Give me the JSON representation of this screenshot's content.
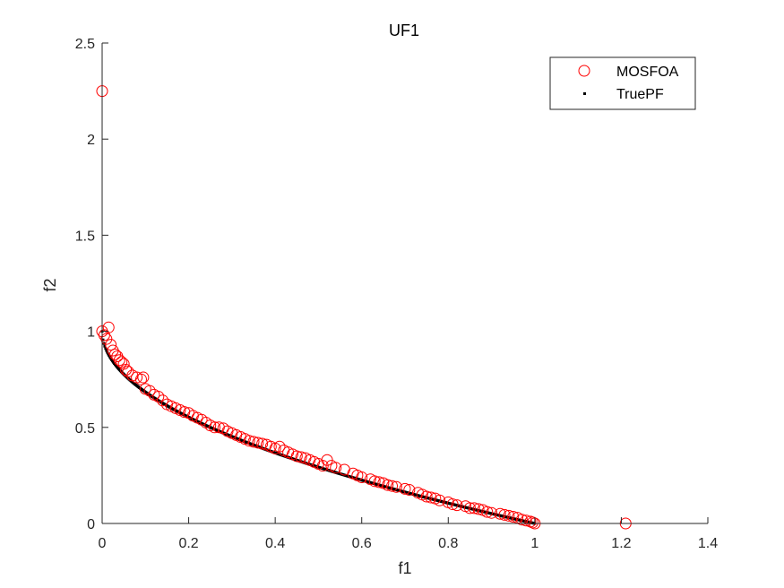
{
  "chart_data": {
    "type": "scatter",
    "title": "UF1",
    "xlabel": "f1",
    "ylabel": "f2",
    "xlim": [
      0,
      1.4
    ],
    "ylim": [
      0,
      2.5
    ],
    "xticks": [
      "0",
      "0.2",
      "0.4",
      "0.6",
      "0.8",
      "1",
      "1.2",
      "1.4"
    ],
    "yticks": [
      "0",
      "0.5",
      "1",
      "1.5",
      "2",
      "2.5"
    ],
    "grid": false,
    "legend_position": "top-right",
    "series": [
      {
        "name": "MOSFOA",
        "marker": "open-circle",
        "color": "#ff0000",
        "points": [
          [
            0.0,
            2.25
          ],
          [
            1.21,
            0.0
          ],
          [
            0.0,
            1.0
          ],
          [
            0.015,
            1.02
          ],
          [
            0.005,
            0.98
          ],
          [
            0.01,
            0.96
          ],
          [
            0.02,
            0.93
          ],
          [
            0.025,
            0.9
          ],
          [
            0.03,
            0.88
          ],
          [
            0.035,
            0.87
          ],
          [
            0.04,
            0.85
          ],
          [
            0.045,
            0.84
          ],
          [
            0.05,
            0.83
          ],
          [
            0.055,
            0.8
          ],
          [
            0.06,
            0.79
          ],
          [
            0.07,
            0.77
          ],
          [
            0.08,
            0.76
          ],
          [
            0.09,
            0.75
          ],
          [
            0.095,
            0.76
          ],
          [
            0.1,
            0.7
          ],
          [
            0.11,
            0.69
          ],
          [
            0.12,
            0.67
          ],
          [
            0.13,
            0.66
          ],
          [
            0.14,
            0.64
          ],
          [
            0.15,
            0.62
          ],
          [
            0.16,
            0.61
          ],
          [
            0.17,
            0.6
          ],
          [
            0.18,
            0.59
          ],
          [
            0.19,
            0.58
          ],
          [
            0.2,
            0.575
          ],
          [
            0.21,
            0.56
          ],
          [
            0.22,
            0.55
          ],
          [
            0.23,
            0.54
          ],
          [
            0.24,
            0.525
          ],
          [
            0.25,
            0.51
          ],
          [
            0.26,
            0.5
          ],
          [
            0.27,
            0.5
          ],
          [
            0.28,
            0.495
          ],
          [
            0.29,
            0.48
          ],
          [
            0.3,
            0.47
          ],
          [
            0.31,
            0.46
          ],
          [
            0.32,
            0.45
          ],
          [
            0.33,
            0.44
          ],
          [
            0.34,
            0.43
          ],
          [
            0.35,
            0.425
          ],
          [
            0.36,
            0.42
          ],
          [
            0.37,
            0.415
          ],
          [
            0.38,
            0.41
          ],
          [
            0.39,
            0.4
          ],
          [
            0.4,
            0.39
          ],
          [
            0.41,
            0.4
          ],
          [
            0.42,
            0.38
          ],
          [
            0.43,
            0.37
          ],
          [
            0.44,
            0.36
          ],
          [
            0.45,
            0.35
          ],
          [
            0.46,
            0.345
          ],
          [
            0.47,
            0.34
          ],
          [
            0.48,
            0.33
          ],
          [
            0.49,
            0.32
          ],
          [
            0.5,
            0.31
          ],
          [
            0.51,
            0.3
          ],
          [
            0.52,
            0.33
          ],
          [
            0.53,
            0.3
          ],
          [
            0.54,
            0.29
          ],
          [
            0.56,
            0.28
          ],
          [
            0.58,
            0.26
          ],
          [
            0.59,
            0.25
          ],
          [
            0.6,
            0.24
          ],
          [
            0.62,
            0.23
          ],
          [
            0.63,
            0.22
          ],
          [
            0.64,
            0.215
          ],
          [
            0.65,
            0.21
          ],
          [
            0.66,
            0.2
          ],
          [
            0.67,
            0.195
          ],
          [
            0.68,
            0.19
          ],
          [
            0.7,
            0.18
          ],
          [
            0.71,
            0.175
          ],
          [
            0.73,
            0.16
          ],
          [
            0.74,
            0.15
          ],
          [
            0.75,
            0.14
          ],
          [
            0.76,
            0.135
          ],
          [
            0.77,
            0.13
          ],
          [
            0.78,
            0.12
          ],
          [
            0.8,
            0.11
          ],
          [
            0.81,
            0.1
          ],
          [
            0.82,
            0.095
          ],
          [
            0.84,
            0.09
          ],
          [
            0.85,
            0.08
          ],
          [
            0.86,
            0.08
          ],
          [
            0.87,
            0.075
          ],
          [
            0.88,
            0.07
          ],
          [
            0.89,
            0.06
          ],
          [
            0.9,
            0.055
          ],
          [
            0.92,
            0.05
          ],
          [
            0.93,
            0.045
          ],
          [
            0.94,
            0.04
          ],
          [
            0.95,
            0.035
          ],
          [
            0.96,
            0.03
          ],
          [
            0.97,
            0.02
          ],
          [
            0.98,
            0.015
          ],
          [
            0.99,
            0.01
          ],
          [
            1.0,
            0.0
          ],
          [
            0.995,
            0.005
          ]
        ]
      },
      {
        "name": "TruePF",
        "marker": "dot",
        "color": "#000000",
        "function": "f2 = 1 - sqrt(f1)",
        "f1_range": [
          0,
          1
        ]
      }
    ]
  }
}
